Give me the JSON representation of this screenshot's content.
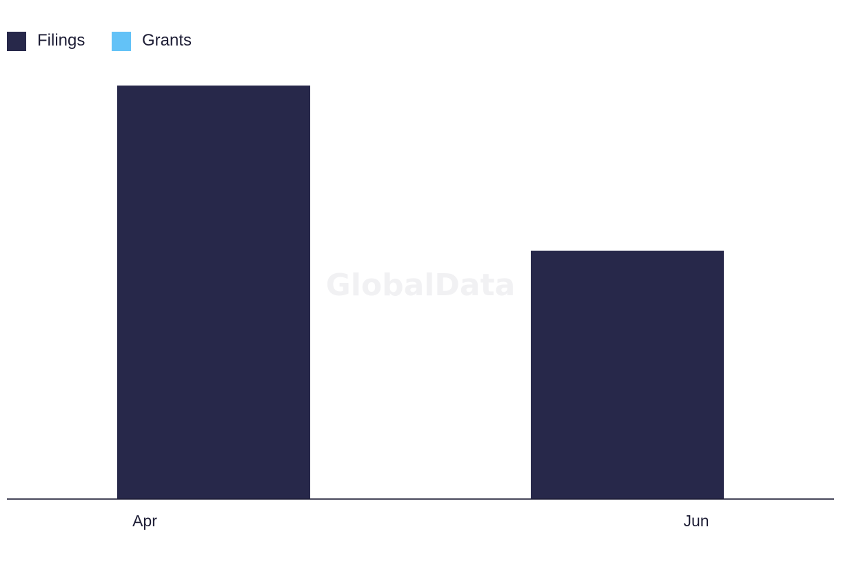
{
  "watermark": "GlobalData",
  "chart_data": {
    "type": "bar",
    "categories": [
      "Apr",
      "Jun"
    ],
    "series": [
      {
        "name": "Filings",
        "color": "#27284a",
        "values": [
          5,
          3
        ]
      },
      {
        "name": "Grants",
        "color": "#63c2f7",
        "values": [
          0,
          0
        ]
      }
    ],
    "ylim": [
      0,
      5
    ],
    "grid": false,
    "legend_position": "top-left",
    "title": "",
    "xlabel": "",
    "ylabel": ""
  }
}
